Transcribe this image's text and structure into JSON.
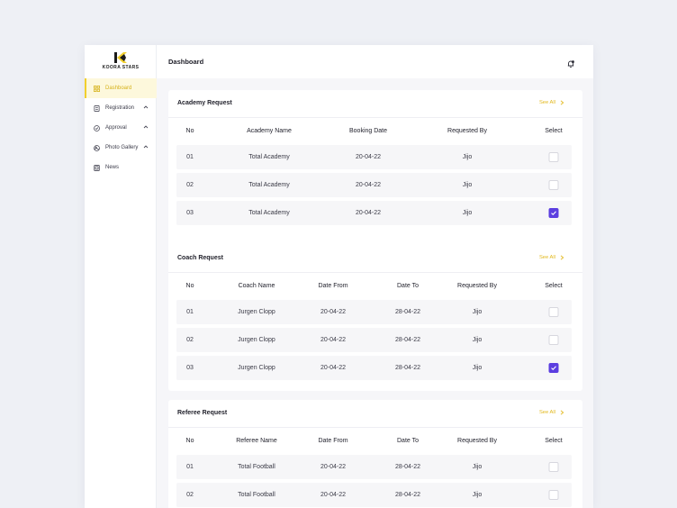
{
  "brand": {
    "name": "KOORA STARS",
    "accent": "#f1cf2c",
    "check_color": "#5b3ee0"
  },
  "header": {
    "title": "Dashboard",
    "icon": "bell-icon"
  },
  "sidebar": {
    "items": [
      {
        "label": "Dashboard",
        "icon": "grid-icon",
        "active": true,
        "chevron": false
      },
      {
        "label": "Registration",
        "icon": "document-icon",
        "active": false,
        "chevron": true
      },
      {
        "label": "Approval",
        "icon": "check-circle-icon",
        "active": false,
        "chevron": true
      },
      {
        "label": "Photo Gallery",
        "icon": "image-icon",
        "active": false,
        "chevron": true
      },
      {
        "label": "News",
        "icon": "newspaper-icon",
        "active": false,
        "chevron": true
      }
    ]
  },
  "academy": {
    "title": "Academy Request",
    "see_all": "See All",
    "headers": [
      "No",
      "Academy Name",
      "Booking Date",
      "Requested By",
      "Select"
    ],
    "rows": [
      {
        "no": "01",
        "name": "Total Academy",
        "date": "20-04-22",
        "by": "Jijo",
        "selected": false
      },
      {
        "no": "02",
        "name": "Total Academy",
        "date": "20-04-22",
        "by": "Jijo",
        "selected": false
      },
      {
        "no": "03",
        "name": "Total Academy",
        "date": "20-04-22",
        "by": "Jijo",
        "selected": true
      }
    ]
  },
  "coach": {
    "title": "Coach Request",
    "see_all": "See All",
    "headers": [
      "No",
      "Coach Name",
      "Date From",
      "Date To",
      "Requested By",
      "Select"
    ],
    "rows": [
      {
        "no": "01",
        "name": "Jurgen Clopp",
        "from": "20-04-22",
        "to": "28-04-22",
        "by": "Jijo",
        "selected": false
      },
      {
        "no": "02",
        "name": "Jurgen Clopp",
        "from": "20-04-22",
        "to": "28-04-22",
        "by": "Jijo",
        "selected": false
      },
      {
        "no": "03",
        "name": "Jurgen Clopp",
        "from": "20-04-22",
        "to": "28-04-22",
        "by": "Jijo",
        "selected": true
      }
    ]
  },
  "referee": {
    "title": "Referee Request",
    "see_all": "See All",
    "headers": [
      "No",
      "Referee Name",
      "Date From",
      "Date To",
      "Requested By",
      "Select"
    ],
    "rows": [
      {
        "no": "01",
        "name": "Total Football",
        "from": "20-04-22",
        "to": "28-04-22",
        "by": "Jijo",
        "selected": false
      },
      {
        "no": "02",
        "name": "Total Football",
        "from": "20-04-22",
        "to": "28-04-22",
        "by": "Jijo",
        "selected": false
      }
    ]
  }
}
